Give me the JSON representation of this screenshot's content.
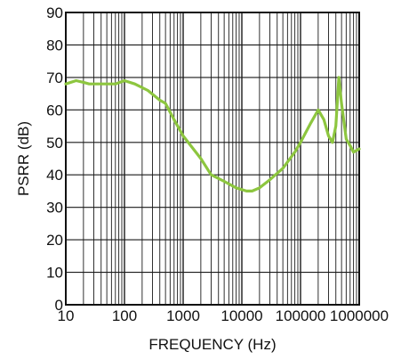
{
  "chart_data": {
    "type": "line",
    "title": "",
    "xlabel": "FREQUENCY (Hz)",
    "ylabel": "PSRR (dB)",
    "x_scale": "log",
    "xlim": [
      10,
      1000000
    ],
    "ylim": [
      0,
      90
    ],
    "x_tick_labels": [
      "10",
      "100",
      "1000",
      "10000",
      "100000",
      "1000000"
    ],
    "y_tick_labels": [
      "0",
      "10",
      "20",
      "30",
      "40",
      "50",
      "60",
      "70",
      "80",
      "90"
    ],
    "grid": true,
    "line_color": "#8DC63F",
    "series": [
      {
        "x": [
          10,
          15,
          20,
          25,
          40,
          70,
          100,
          150,
          250,
          400,
          500,
          700,
          1000,
          2000,
          3000,
          5000,
          8000,
          12000,
          15000,
          20000,
          30000,
          50000,
          80000,
          100000,
          150000,
          200000,
          250000,
          300000,
          350000,
          400000,
          450000,
          500000,
          600000,
          700000,
          800000,
          1000000
        ],
        "y": [
          68,
          69,
          68.5,
          68,
          68,
          68,
          69,
          68,
          66,
          63,
          62,
          57,
          52,
          45,
          40,
          38,
          36,
          35,
          35,
          36,
          38.5,
          42,
          47,
          50,
          56,
          60,
          57,
          52,
          50,
          55,
          70,
          62,
          51,
          49,
          47,
          48
        ]
      }
    ]
  }
}
